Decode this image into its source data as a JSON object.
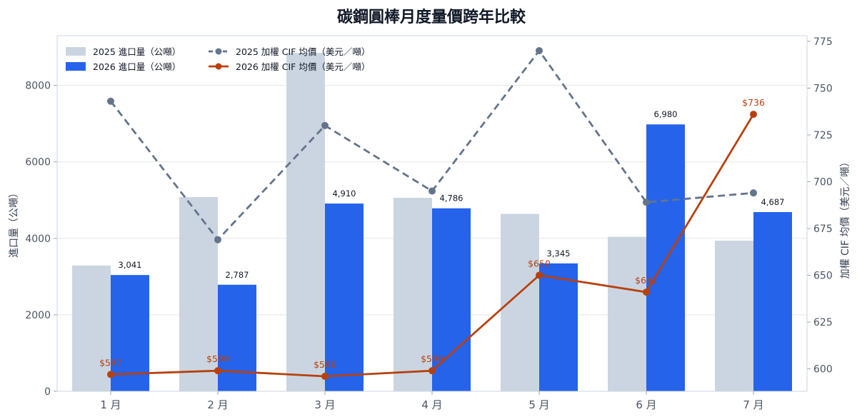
{
  "chart_data": {
    "type": "bar",
    "title": "碳鋼圓棒月度量價跨年比較",
    "categories": [
      "1 月",
      "2 月",
      "3 月",
      "4 月",
      "5 月",
      "6 月",
      "7 月"
    ],
    "ylabel_left": "進口量（公噸）",
    "ylabel_right": "加權 CIF 均價（美元／噸）",
    "ylim_left": [
      0,
      9300
    ],
    "ylim_right": [
      588,
      778
    ],
    "yticks_left": [
      "0",
      "2000",
      "4000",
      "6000",
      "8000"
    ],
    "yticks_right": [
      "600",
      "625",
      "650",
      "675",
      "700",
      "725",
      "750",
      "775"
    ],
    "grid": true,
    "legend_position": "top-left",
    "bar_series": [
      {
        "name": "2025 進口量（公噸）",
        "color": "#cbd5e1",
        "values": [
          3290,
          5080,
          8850,
          5060,
          4640,
          4040,
          3940
        ]
      },
      {
        "name": "2026 進口量（公噸）",
        "color": "#2563eb",
        "values": [
          3041,
          2787,
          4910,
          4786,
          3345,
          6980,
          4687
        ],
        "labels": [
          "3,041",
          "2,787",
          "4,910",
          "4,786",
          "3,345",
          "6,980",
          "4,687"
        ]
      }
    ],
    "line_series": [
      {
        "name": "2025 加權 CIF 均價（美元／噸）",
        "color": "#64748b",
        "dashed": true,
        "values": [
          743,
          669,
          730,
          695,
          770,
          689,
          694
        ]
      },
      {
        "name": "2026 加權 CIF 均價（美元／噸）",
        "color": "#b7410e",
        "dashed": false,
        "values": [
          597,
          599,
          596,
          599,
          650,
          641,
          736
        ],
        "labels": [
          "$597",
          "$599",
          "$596",
          "$599",
          "$650",
          "$641",
          "$736"
        ]
      }
    ]
  }
}
